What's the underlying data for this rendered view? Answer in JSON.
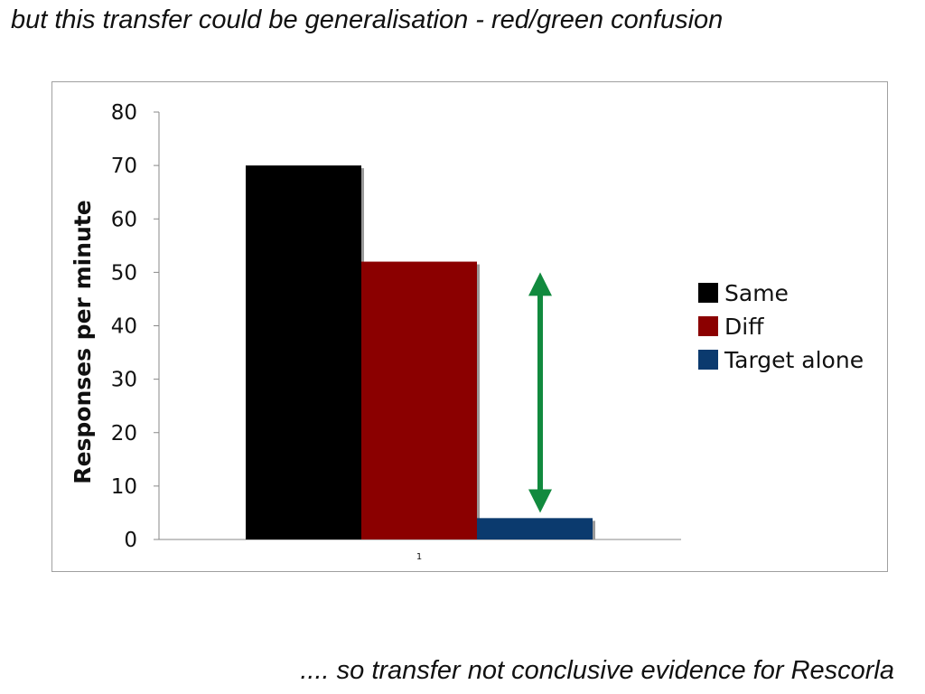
{
  "slide": {
    "title": "but this transfer could be generalisation - red/green confusion",
    "footer": ".... so transfer not conclusive evidence for Rescorla"
  },
  "chart_data": {
    "type": "bar",
    "title": "",
    "xlabel": "",
    "ylabel": "Responses per minute",
    "ylim": [
      0,
      80
    ],
    "yticks": [
      0,
      10,
      20,
      30,
      40,
      50,
      60,
      70,
      80
    ],
    "categories": [
      "1"
    ],
    "grid": false,
    "legend_position": "right",
    "series": [
      {
        "name": "Same",
        "values": [
          70
        ],
        "color": "#000000"
      },
      {
        "name": "Diff",
        "values": [
          52
        ],
        "color": "#8b0000"
      },
      {
        "name": "Target alone",
        "values": [
          4
        ],
        "color": "#0b3a6e"
      }
    ],
    "annotation": {
      "type": "double-arrow",
      "from_value": 5,
      "to_value": 50,
      "color": "#118a3e"
    }
  }
}
